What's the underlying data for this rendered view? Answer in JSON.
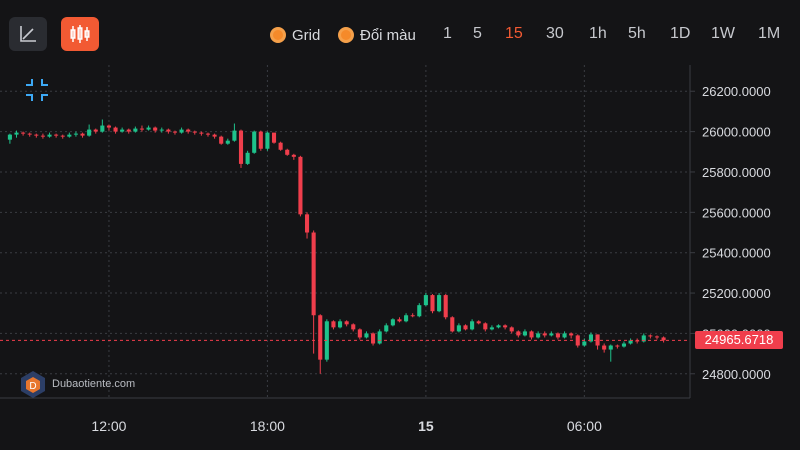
{
  "toolbar": {
    "chart_type_buttons": [
      {
        "name": "line",
        "icon": "line-chart-icon",
        "active": false
      },
      {
        "name": "candles",
        "icon": "candlestick-icon",
        "active": true
      }
    ],
    "toggles": [
      {
        "label": "Grid",
        "icon": "radio-on-icon"
      },
      {
        "label": "Đổi màu",
        "icon": "radio-on-icon"
      }
    ],
    "timeframes": [
      "1",
      "5",
      "15",
      "30",
      "1h",
      "5h",
      "1D",
      "1W",
      "1M"
    ],
    "active_timeframe": "15"
  },
  "watermark": {
    "text": "Dubaotiente.com",
    "icon": "logo-icon"
  },
  "colors": {
    "up": "#1ec28b",
    "down": "#f03e4c",
    "accent": "#f25a33",
    "grid": "#3a3c42",
    "background": "#141416"
  },
  "chart_data": {
    "type": "candlestick",
    "grid": true,
    "legend": "none",
    "x_tick_labels": [
      {
        "label": "12:00",
        "t": 15
      },
      {
        "label": "18:00",
        "t": 39
      },
      {
        "label": "15",
        "t": 63,
        "bold": true
      },
      {
        "label": "06:00",
        "t": 87
      }
    ],
    "y_tick_labels": [
      "26200.0000",
      "26000.0000",
      "25800.0000",
      "25600.0000",
      "25400.0000",
      "25200.0000",
      "25000.0000",
      "24800.0000"
    ],
    "y_ticks": [
      26200,
      26000,
      25800,
      25600,
      25400,
      25200,
      25000,
      24800
    ],
    "ylim": [
      24680,
      26330
    ],
    "xlim": [
      -1.5,
      103
    ],
    "last_price": 24965.6718,
    "last_price_label": "24965.6718",
    "candles": [
      [
        25960,
        25985,
        25990,
        25940
      ],
      [
        25985,
        25995,
        26005,
        25970
      ],
      [
        25995,
        25990,
        26000,
        25980
      ],
      [
        25990,
        25985,
        25995,
        25975
      ],
      [
        25985,
        25980,
        25990,
        25970
      ],
      [
        25980,
        25975,
        25990,
        25965
      ],
      [
        25975,
        25985,
        25995,
        25970
      ],
      [
        25985,
        25980,
        25990,
        25970
      ],
      [
        25980,
        25975,
        25985,
        25965
      ],
      [
        25975,
        25985,
        25995,
        25970
      ],
      [
        25985,
        25990,
        26000,
        25975
      ],
      [
        25990,
        25980,
        25995,
        25970
      ],
      [
        25980,
        26010,
        26035,
        25975
      ],
      [
        26010,
        26000,
        26015,
        25990
      ],
      [
        26000,
        26030,
        26060,
        25995
      ],
      [
        26030,
        26020,
        26035,
        26005
      ],
      [
        26020,
        26000,
        26025,
        25990
      ],
      [
        26000,
        26010,
        26020,
        25995
      ],
      [
        26010,
        26000,
        26015,
        25990
      ],
      [
        26000,
        26015,
        26025,
        25995
      ],
      [
        26015,
        26010,
        26030,
        26000
      ],
      [
        26010,
        26020,
        26030,
        26005
      ],
      [
        26020,
        26005,
        26025,
        25995
      ],
      [
        26005,
        26010,
        26020,
        25995
      ],
      [
        26010,
        26000,
        26015,
        25990
      ],
      [
        26000,
        25995,
        26005,
        25985
      ],
      [
        25995,
        26010,
        26020,
        25990
      ],
      [
        26010,
        26000,
        26015,
        25990
      ],
      [
        26000,
        25995,
        26005,
        25985
      ],
      [
        25995,
        25990,
        26000,
        25980
      ],
      [
        25990,
        25985,
        25995,
        25975
      ],
      [
        25985,
        25975,
        25990,
        25965
      ],
      [
        25975,
        25940,
        25980,
        25935
      ],
      [
        25940,
        25955,
        25965,
        25935
      ],
      [
        25955,
        26005,
        26040,
        25950
      ],
      [
        26005,
        25840,
        26010,
        25820
      ],
      [
        25840,
        25895,
        25905,
        25835
      ],
      [
        25895,
        26000,
        26005,
        25890
      ],
      [
        26000,
        25915,
        26005,
        25905
      ],
      [
        25915,
        25995,
        26000,
        25905
      ],
      [
        25995,
        25945,
        25960,
        25940
      ],
      [
        25945,
        25910,
        25950,
        25905
      ],
      [
        25910,
        25885,
        25915,
        25880
      ],
      [
        25885,
        25875,
        25890,
        25860
      ],
      [
        25875,
        25590,
        25880,
        25580
      ],
      [
        25590,
        25500,
        25600,
        25470
      ],
      [
        25500,
        25090,
        25510,
        24900
      ],
      [
        25090,
        24870,
        25095,
        24800
      ],
      [
        24870,
        25060,
        25070,
        24860
      ],
      [
        25060,
        25030,
        25065,
        25020
      ],
      [
        25030,
        25060,
        25070,
        25025
      ],
      [
        25060,
        25045,
        25065,
        25035
      ],
      [
        25045,
        25020,
        25050,
        25010
      ],
      [
        25020,
        24980,
        25025,
        24970
      ],
      [
        24980,
        25000,
        25010,
        24975
      ],
      [
        25000,
        24950,
        25005,
        24940
      ],
      [
        24950,
        25010,
        25020,
        24945
      ],
      [
        25010,
        25040,
        25050,
        25005
      ],
      [
        25040,
        25070,
        25075,
        25035
      ],
      [
        25070,
        25060,
        25080,
        25055
      ],
      [
        25060,
        25090,
        25100,
        25055
      ],
      [
        25090,
        25085,
        25100,
        25080
      ],
      [
        25085,
        25140,
        25150,
        25080
      ],
      [
        25140,
        25190,
        25200,
        25135
      ],
      [
        25190,
        25110,
        25195,
        25100
      ],
      [
        25110,
        25190,
        25200,
        25105
      ],
      [
        25190,
        25080,
        25195,
        25070
      ],
      [
        25080,
        25010,
        25085,
        25005
      ],
      [
        25010,
        25040,
        25050,
        25005
      ],
      [
        25040,
        25020,
        25045,
        25015
      ],
      [
        25020,
        25060,
        25070,
        25015
      ],
      [
        25060,
        25050,
        25065,
        25045
      ],
      [
        25050,
        25020,
        25055,
        25010
      ],
      [
        25020,
        25030,
        25040,
        25015
      ],
      [
        25030,
        25040,
        25045,
        25025
      ],
      [
        25040,
        25030,
        25045,
        25020
      ],
      [
        25030,
        25010,
        25035,
        25000
      ],
      [
        25010,
        24990,
        25015,
        24980
      ],
      [
        24990,
        25010,
        25020,
        24985
      ],
      [
        25010,
        24980,
        25015,
        24970
      ],
      [
        24980,
        25000,
        25010,
        24975
      ],
      [
        25000,
        24990,
        25010,
        24980
      ],
      [
        24990,
        25000,
        25010,
        24985
      ],
      [
        25000,
        24980,
        25005,
        24970
      ],
      [
        24980,
        25000,
        25010,
        24975
      ],
      [
        25000,
        24990,
        25005,
        24975
      ],
      [
        24990,
        24940,
        24995,
        24930
      ],
      [
        24940,
        24960,
        24975,
        24935
      ],
      [
        24960,
        24995,
        25005,
        24955
      ],
      [
        24995,
        24940,
        24995,
        24920
      ],
      [
        24940,
        24920,
        24950,
        24905
      ],
      [
        24920,
        24940,
        24945,
        24860
      ],
      [
        24940,
        24935,
        24945,
        24925
      ],
      [
        24935,
        24950,
        24960,
        24930
      ],
      [
        24950,
        24965,
        24975,
        24945
      ],
      [
        24965,
        24960,
        24975,
        24950
      ],
      [
        24960,
        24990,
        25000,
        24955
      ],
      [
        24990,
        24985,
        24995,
        24975
      ],
      [
        24985,
        24980,
        24990,
        24970
      ],
      [
        24980,
        24966,
        24985,
        24955
      ]
    ]
  }
}
